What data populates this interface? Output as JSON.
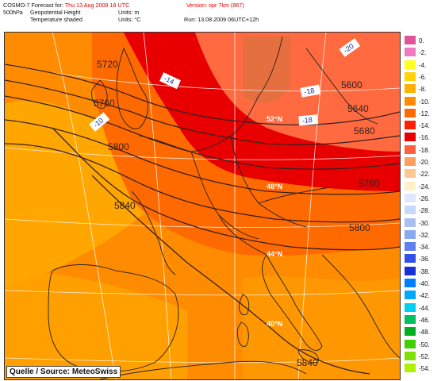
{
  "header": {
    "line1_left": "COSMO-7 Forecast for:",
    "line1_date": "Thu 13 Aug 2009 18 UTC",
    "line1_version": "Version: opr 7km (867)",
    "line2_level": "500hPa",
    "line2_field": "Geopotential Height",
    "line2_units": "Units: m",
    "line3_field": "Temperature shaded",
    "line3_units": "Units: °C",
    "line3_run": "Run: 13.08.2009 06UTC+12h"
  },
  "map": {
    "source_label": "Quelle / Source: MeteoSwiss",
    "contour_labels": [
      "5720",
      "5760",
      "5800",
      "5840",
      "5600",
      "5640",
      "5680",
      "5760",
      "5800",
      "5840"
    ],
    "temp_labels": [
      "-14",
      "-10",
      "-18",
      "-18",
      "-20"
    ],
    "lat_labels": [
      "52°N",
      "48°N",
      "44°N",
      "40°N"
    ]
  },
  "legend": {
    "entries": [
      {
        "label": "0.",
        "color": "#e0559a"
      },
      {
        "label": "-2.",
        "color": "#f079c2"
      },
      {
        "label": "-4.",
        "color": "#ffff20"
      },
      {
        "label": "-6.",
        "color": "#ffd400"
      },
      {
        "label": "-8.",
        "color": "#ffb000"
      },
      {
        "label": "-10.",
        "color": "#ff8c00"
      },
      {
        "label": "-12.",
        "color": "#ff6a00"
      },
      {
        "label": "-14.",
        "color": "#ff2000"
      },
      {
        "label": "-16.",
        "color": "#e80000"
      },
      {
        "label": "-18.",
        "color": "#ff6040"
      },
      {
        "label": "-20.",
        "color": "#ffa060"
      },
      {
        "label": "-22.",
        "color": "#ffc890"
      },
      {
        "label": "-24.",
        "color": "#fff0c8"
      },
      {
        "label": "-26.",
        "color": "#e0e8ff"
      },
      {
        "label": "-28.",
        "color": "#c8d8f8"
      },
      {
        "label": "-30.",
        "color": "#a8c0f0"
      },
      {
        "label": "-32.",
        "color": "#88a8f0"
      },
      {
        "label": "-34.",
        "color": "#6080f0"
      },
      {
        "label": "-36.",
        "color": "#3050e8"
      },
      {
        "label": "-38.",
        "color": "#1830d8"
      },
      {
        "label": "-40.",
        "color": "#0080ff"
      },
      {
        "label": "-42.",
        "color": "#00a8ff"
      },
      {
        "label": "-44.",
        "color": "#00d0f0"
      },
      {
        "label": "-46.",
        "color": "#00c060"
      },
      {
        "label": "-48.",
        "color": "#00b020"
      },
      {
        "label": "-50.",
        "color": "#40d000"
      },
      {
        "label": "-52.",
        "color": "#80e000"
      },
      {
        "label": "-54.",
        "color": "#b0f000"
      }
    ]
  }
}
